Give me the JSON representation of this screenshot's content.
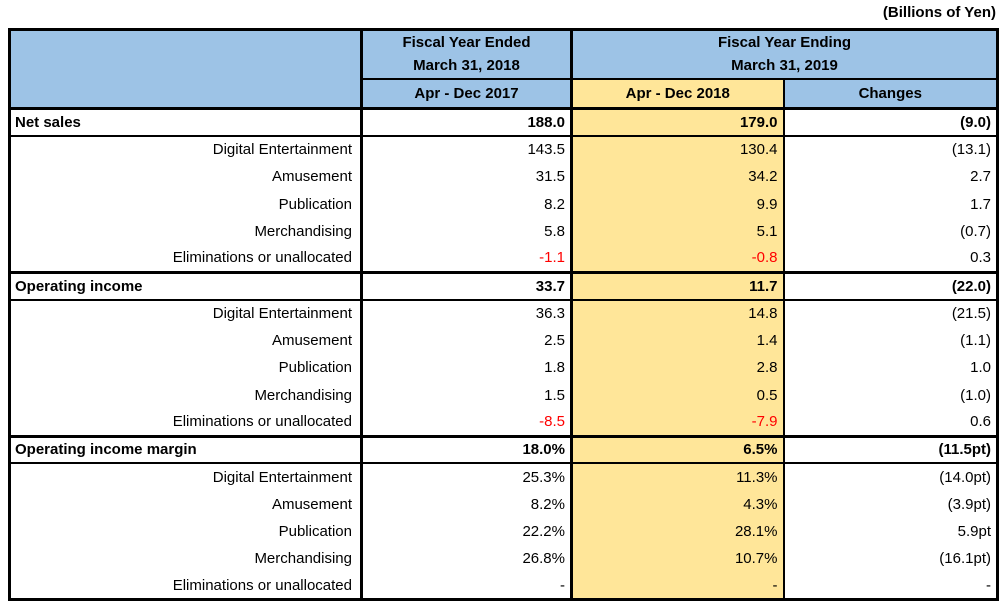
{
  "unit_note": "(Billions of Yen)",
  "colors": {
    "header_blue": "#9DC3E6",
    "highlight_yellow": "#FFE699",
    "negative_red": "#FF0000",
    "border_black": "#000000"
  },
  "header": {
    "fy2018_group": {
      "line1": "Fiscal Year Ended",
      "line2": "March 31, 2018"
    },
    "fy2019_group": {
      "line1": "Fiscal Year Ending",
      "line2": "March 31, 2019"
    },
    "sub_2017": "Apr - Dec 2017",
    "sub_2018": "Apr - Dec 2018",
    "sub_changes": "Changes"
  },
  "sections": [
    {
      "total": {
        "label": "Net sales",
        "v2017": "188.0",
        "v2018": "179.0",
        "change": "(9.0)"
      },
      "rows": [
        {
          "label": "Digital Entertainment",
          "v2017": "143.5",
          "v2018": "130.4",
          "change": "(13.1)"
        },
        {
          "label": "Amusement",
          "v2017": "31.5",
          "v2018": "34.2",
          "change": "2.7"
        },
        {
          "label": "Publication",
          "v2017": "8.2",
          "v2018": "9.9",
          "change": "1.7"
        },
        {
          "label": "Merchandising",
          "v2017": "5.8",
          "v2018": "5.1",
          "change": "(0.7)"
        },
        {
          "label": "Eliminations or unallocated",
          "v2017": "-1.1",
          "v2018": "-0.8",
          "change": "0.3"
        }
      ]
    },
    {
      "total": {
        "label": "Operating income",
        "v2017": "33.7",
        "v2018": "11.7",
        "change": "(22.0)"
      },
      "rows": [
        {
          "label": "Digital Entertainment",
          "v2017": "36.3",
          "v2018": "14.8",
          "change": "(21.5)"
        },
        {
          "label": "Amusement",
          "v2017": "2.5",
          "v2018": "1.4",
          "change": "(1.1)"
        },
        {
          "label": "Publication",
          "v2017": "1.8",
          "v2018": "2.8",
          "change": "1.0"
        },
        {
          "label": "Merchandising",
          "v2017": "1.5",
          "v2018": "0.5",
          "change": "(1.0)"
        },
        {
          "label": "Eliminations or unallocated",
          "v2017": "-8.5",
          "v2018": "-7.9",
          "change": "0.6"
        }
      ]
    },
    {
      "total": {
        "label": "Operating income margin",
        "v2017": "18.0%",
        "v2018": "6.5%",
        "change": "(11.5pt)"
      },
      "rows": [
        {
          "label": "Digital Entertainment",
          "v2017": "25.3%",
          "v2018": "11.3%",
          "change": "(14.0pt)"
        },
        {
          "label": "Amusement",
          "v2017": "8.2%",
          "v2018": "4.3%",
          "change": "(3.9pt)"
        },
        {
          "label": "Publication",
          "v2017": "22.2%",
          "v2018": "28.1%",
          "change": "5.9pt"
        },
        {
          "label": "Merchandising",
          "v2017": "26.8%",
          "v2018": "10.7%",
          "change": "(16.1pt)"
        },
        {
          "label": "Eliminations or unallocated",
          "v2017": "-",
          "v2018": "-",
          "change": "-"
        }
      ]
    }
  ]
}
